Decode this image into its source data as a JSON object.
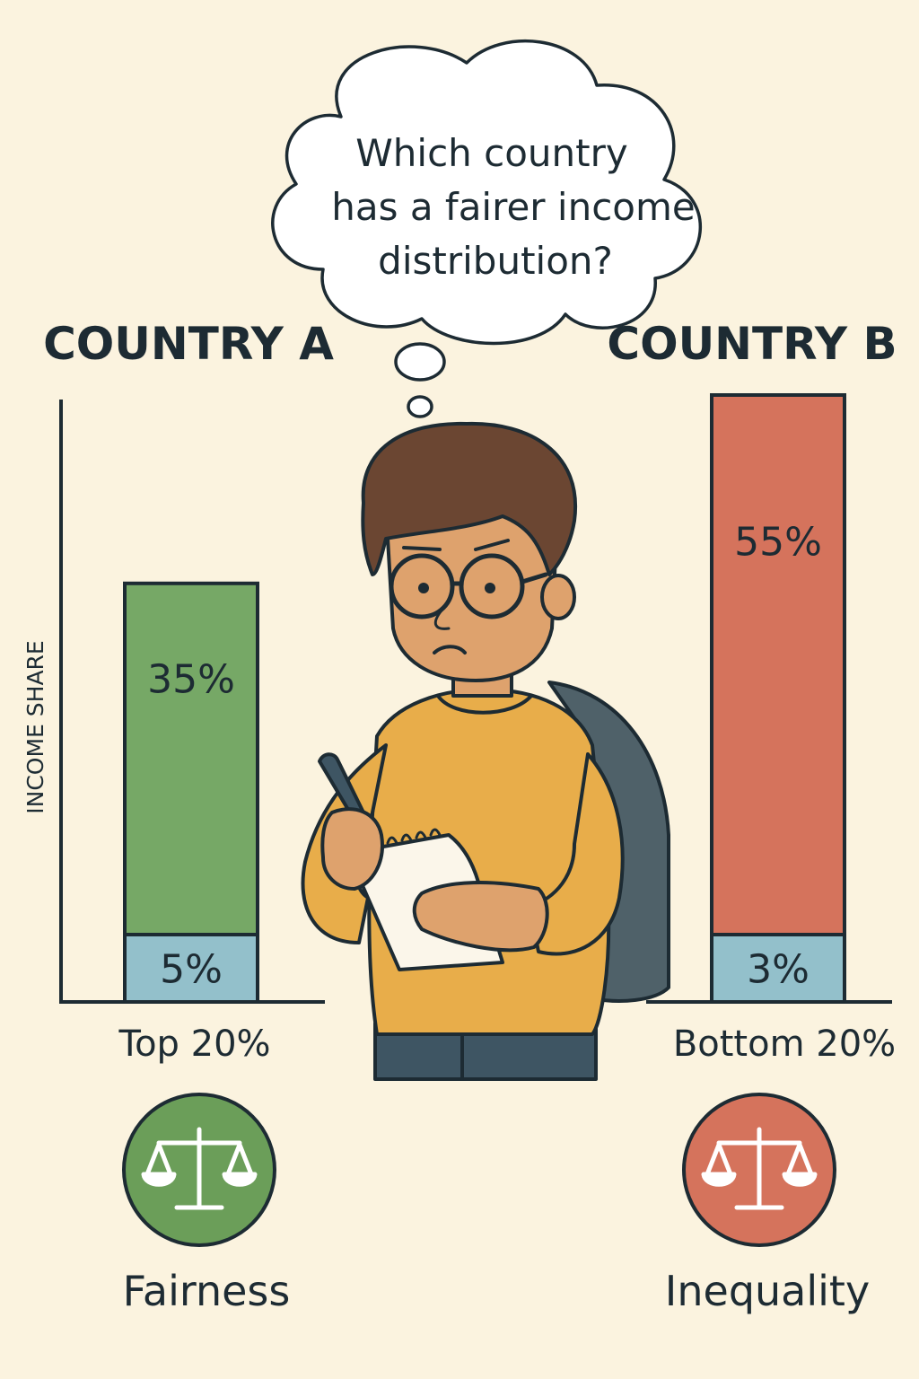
{
  "question": {
    "lines": [
      "Which country",
      "has a fairer income",
      "distribution?"
    ]
  },
  "chart_data": {
    "type": "bar",
    "stacked": true,
    "ylabel": "INCOME SHARE",
    "countries": [
      {
        "title": "COUNTRY A",
        "category_label": "Top 20%",
        "segments": [
          {
            "name": "Top 20%",
            "value": 35,
            "label": "35%",
            "color": "#76a866"
          },
          {
            "name": "Bottom 20%",
            "value": 5,
            "label": "5%",
            "color": "#93c0cb"
          }
        ],
        "badge": {
          "label": "Fairness",
          "color": "#6b9e59",
          "icon": "scales-icon"
        }
      },
      {
        "title": "COUNTRY B",
        "category_label": "Bottom 20%",
        "segments": [
          {
            "name": "Top 20%",
            "value": 55,
            "label": "55%",
            "color": "#d5735c"
          },
          {
            "name": "Bottom 20%",
            "value": 3,
            "label": "3%",
            "color": "#93c0cb"
          }
        ],
        "badge": {
          "label": "Inequality",
          "color": "#d5735c",
          "icon": "scales-icon"
        }
      }
    ]
  },
  "colors": {
    "background": "#fbf3df",
    "ink": "#1d2b33",
    "sweater": "#e8ad4a",
    "skin": "#dea26d",
    "hair": "#6b4632",
    "backpack": "#4f6169",
    "pants": "#3e5563"
  }
}
